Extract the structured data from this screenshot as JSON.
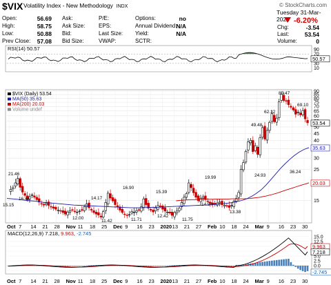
{
  "header": {
    "symbol": "$VIX",
    "name": "Volatility Index - New Methodology",
    "exchange": "INDX",
    "copyright": "© StockCharts.com",
    "date": "Tuesday   31-Mar-2020",
    "open_label": "Open:",
    "open": "56.69",
    "high_label": "High:",
    "high": "58.75",
    "low_label": "Low:",
    "low": "50.88",
    "prev_label": "Prev Close:",
    "prev": "57.08",
    "ask_label": "Ask:",
    "asksize_label": "Ask Size:",
    "bid_label": "Bid:",
    "bidsize_label": "Bid Size:",
    "pe_label": "P/E:",
    "eps_label": "EPS:",
    "lastsize_label": "Last Size:",
    "vwap_label": "VWAP:",
    "options_label": "Options:",
    "options": "no",
    "div_label": "Annual Dividend:",
    "div": "N/A",
    "yield_label": "Yield:",
    "yield": "N/A",
    "sctr_label": "SCTR:",
    "pct_change": "-6.20%",
    "chg_label": "Chg:",
    "chg": "-3.54",
    "last_label": "Last:",
    "last": "53.54",
    "volume_label": "Volume:",
    "volume": "0"
  },
  "chart_data": [
    {
      "type": "line",
      "title": "RSI(14) 50.57",
      "ylim": [
        0,
        100
      ],
      "yticks": [
        10,
        30,
        50,
        70,
        90
      ],
      "reference_lines": [
        30,
        70
      ],
      "last_label": "50.57",
      "overbought_fill_color": "#3a7a3a",
      "line_color": "#000000"
    },
    {
      "type": "candlestick",
      "legend": [
        {
          "label": "$VIX (Daily) 53.54",
          "color": "#000000"
        },
        {
          "label": "MA(50) 35.63",
          "color": "#1a1aa8"
        },
        {
          "label": "MA(200) 20.03",
          "color": "#cc0000"
        },
        {
          "label": "Volume undef",
          "color": "#888888"
        }
      ],
      "y_scale": "log",
      "ylim": [
        10.5,
        90
      ],
      "yticks": [
        15,
        20,
        25,
        30,
        35,
        40,
        45,
        50,
        55,
        60,
        65,
        70,
        75,
        80,
        85,
        90
      ],
      "x_axis_labels": [
        "Oct",
        "7",
        "14",
        "21",
        "28",
        "Nov",
        "11",
        "18",
        "25",
        "Dec",
        "9",
        "16",
        "23",
        "2020",
        "13",
        "21",
        "27",
        "Feb",
        "10",
        "18",
        "24",
        "Mar",
        "9",
        "16",
        "23",
        "30"
      ],
      "annotations": [
        "21.46",
        "15.15",
        "16.44",
        "12.00",
        "14.17",
        "11.42",
        "16.90",
        "11.71",
        "15.39",
        "12.42",
        "11.75",
        "19.99",
        "14.94",
        "13.38",
        "49.48",
        "24.93",
        "62.12",
        "85.47",
        "69.10",
        "36.24"
      ],
      "price_series": [
        17.5,
        18.0,
        18.5,
        20.0,
        21.46,
        18.6,
        17.2,
        16.3,
        15.15,
        16.0,
        16.44,
        15.8,
        15.2,
        14.6,
        14.2,
        13.9,
        14.3,
        13.8,
        13.5,
        13.2,
        13.0,
        12.8,
        12.6,
        12.3,
        12.0,
        12.4,
        12.7,
        12.9,
        12.5,
        12.4,
        12.6,
        12.9,
        13.5,
        14.17,
        13.3,
        12.8,
        12.3,
        12.0,
        11.8,
        11.42,
        12.5,
        14.5,
        16.9,
        15.6,
        14.9,
        14.0,
        13.5,
        12.8,
        12.3,
        11.9,
        11.71,
        11.9,
        12.5,
        12.4,
        12.7,
        12.9,
        13.5,
        15.39,
        14.0,
        13.2,
        12.8,
        12.42,
        13.3,
        13.8,
        13.6,
        13.0,
        12.6,
        12.4,
        12.2,
        11.75,
        12.3,
        12.6,
        13.2,
        14.5,
        15.8,
        16.8,
        19.99,
        18.5,
        17.0,
        15.8,
        14.94,
        15.5,
        15.9,
        15.2,
        14.7,
        14.3,
        14.0,
        14.1,
        14.4,
        14.6,
        14.0,
        13.9,
        13.68,
        13.38,
        13.8,
        14.8,
        15.5,
        17.1,
        25.0,
        27.9,
        33.5,
        39.2,
        40.1,
        33.4,
        36.8,
        31.9,
        41.9,
        49.48,
        41.0,
        47.3,
        53.9,
        62.12,
        54.5,
        57.8,
        75.5,
        85.47,
        77.0,
        76.5,
        72.0,
        69.1,
        66.0,
        61.6,
        63.9,
        61.0,
        65.5,
        57.08,
        53.54
      ],
      "ma50": [
        15.5,
        15.4,
        15.3,
        15.2,
        15.0,
        14.9,
        14.8,
        14.6,
        14.5,
        14.4,
        14.3,
        14.2,
        14.1,
        14.0,
        13.9,
        13.85,
        13.8,
        13.75,
        13.7,
        13.65,
        13.6,
        13.55,
        13.5,
        13.45,
        13.4,
        13.35,
        13.3,
        13.3,
        13.3,
        13.35,
        13.4,
        13.4,
        13.45,
        13.5,
        13.55,
        13.6,
        13.65,
        13.7,
        13.75,
        13.8,
        13.85,
        13.9,
        13.95,
        14.0,
        14.1,
        14.2,
        14.35,
        14.5,
        14.7,
        15.0,
        15.4,
        16.0,
        16.8,
        17.8,
        19.2,
        21.0,
        23.0,
        25.2,
        27.3,
        29.4,
        31.4,
        33.2,
        34.6,
        35.63
      ],
      "ma200": [
        14.9,
        15.0,
        15.05,
        15.1,
        15.15,
        15.2,
        15.2,
        15.25,
        15.25,
        15.3,
        15.3,
        15.3,
        15.3,
        15.35,
        15.35,
        15.35,
        15.35,
        15.35,
        15.4,
        15.4,
        15.4,
        15.4,
        15.4,
        15.45,
        15.5,
        15.6,
        15.7,
        15.8,
        15.95,
        16.1,
        16.3,
        16.5,
        16.75,
        17.0,
        17.3,
        17.6,
        17.9,
        18.2,
        18.5,
        18.8,
        19.1,
        19.4,
        19.7,
        20.03
      ],
      "last_label": "53.54",
      "ma50_label": "35.63",
      "ma200_label": "20.03"
    },
    {
      "type": "line",
      "title": "MACD(12,26,9) 7.218, 9.963, -2.745",
      "title_parts": [
        "MACD(12,26,9) ",
        "7.218",
        ", ",
        "9.963",
        ", ",
        "-2.745"
      ],
      "ylim": [
        -3.5,
        16
      ],
      "yticks": [
        -2.5,
        0,
        2.5,
        5.0,
        7.5,
        10.0,
        12.5,
        15.0
      ],
      "ytick_labels": [
        "",
        "0.0",
        "2.5",
        "5.0",
        "7.5",
        "10.0",
        "12.5",
        "15.0"
      ],
      "last_labels": [
        "9.963",
        "7.218",
        "-2.745"
      ],
      "macd_color": "#000000",
      "signal_color": "#cc0000",
      "histogram_color": "#1a5ea8"
    }
  ]
}
